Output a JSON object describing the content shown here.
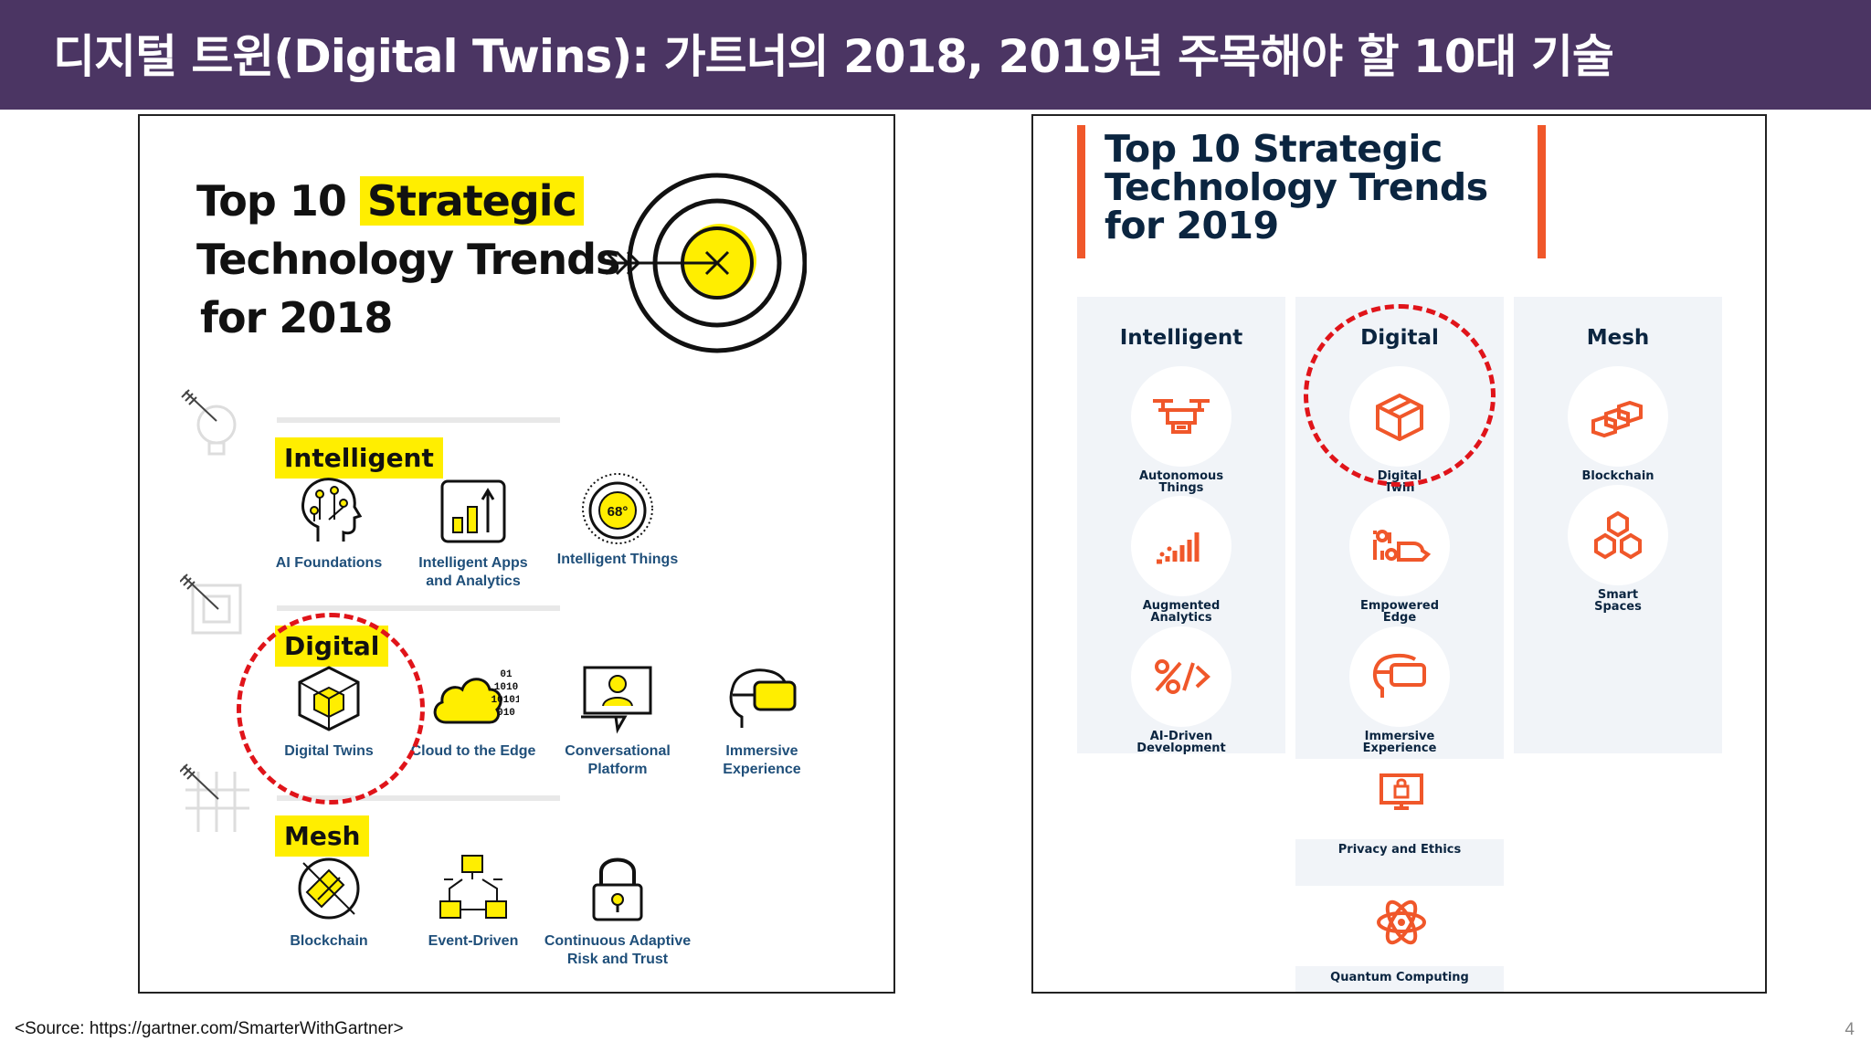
{
  "header": {
    "title": "디지털 트윈(Digital Twins): 가트너의 2018, 2019년 주목해야 할 10대 기술"
  },
  "left": {
    "title_line1_plain": "Top 10",
    "title_line1_highlight": "Strategic",
    "title_line2": "Technology Trends",
    "title_line3": "for 2018",
    "sections": {
      "intelligent": "Intelligent",
      "digital": "Digital",
      "mesh": "Mesh"
    },
    "items": {
      "ai_foundations": "AI Foundations",
      "intelligent_apps": "Intelligent Apps\nand Analytics",
      "intelligent_things": "Intelligent Things",
      "thermostat_value": "68°",
      "digital_twins": "Digital Twins",
      "cloud_edge": "Cloud to the Edge",
      "conversational": "Conversational\nPlatform",
      "immersive": "Immersive\nExperience",
      "blockchain": "Blockchain",
      "event_driven": "Event-Driven",
      "carta": "Continuous Adaptive\nRisk and Trust"
    },
    "binary_lines": [
      "01",
      "1010",
      "10101",
      "010"
    ]
  },
  "right": {
    "title_line1": "Top 10 Strategic",
    "title_line2": "Technology Trends",
    "title_line3": "for 2019",
    "columns": {
      "intelligent": "Intelligent",
      "digital": "Digital",
      "mesh": "Mesh"
    },
    "items": {
      "autonomous": "Autonomous\nThings",
      "augmented": "Augmented\nAnalytics",
      "ai_dev": "AI-Driven\nDevelopment",
      "digital_twin": "Digital\nTwin",
      "empowered_edge": "Empowered\nEdge",
      "immersive": "Immersive\nExperience",
      "blockchain": "Blockchain",
      "smart_spaces": "Smart\nSpaces",
      "privacy": "Privacy and Ethics",
      "quantum": "Quantum Computing"
    }
  },
  "footer": {
    "source": "<Source:  https://gartner.com/SmarterWithGartner>",
    "page_number": "4"
  },
  "colors": {
    "header_bg": "#4b3563",
    "yellow": "#ffee00",
    "orange": "#f0572a",
    "navy": "#0b2540",
    "red_dash": "#e0141a",
    "link_blue": "#1f4f7a"
  }
}
